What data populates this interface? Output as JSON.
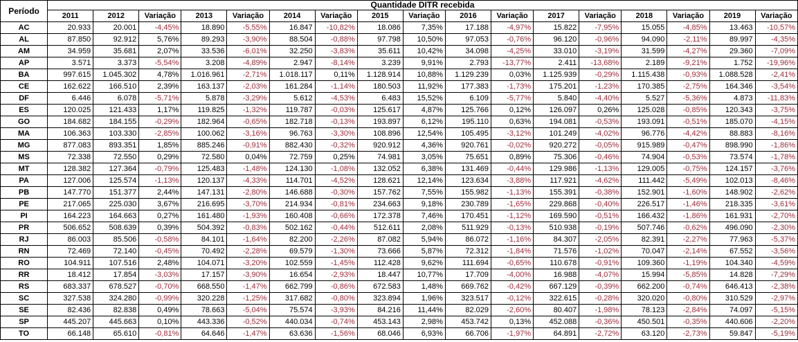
{
  "colors": {
    "negative_text": "#9c2b38",
    "positive_text": "#000000",
    "border": "#000000",
    "background": "#ffffff"
  },
  "chart_data": {
    "type": "table",
    "title": "Quantidade DITR recebida",
    "row_header": "Período",
    "columns": [
      "2011",
      "2012",
      "Variação",
      "2013",
      "Variação",
      "2014",
      "Variação",
      "2015",
      "Variação",
      "2016",
      "Variação",
      "2017",
      "Variação",
      "2018",
      "Variação",
      "2019",
      "Variação"
    ],
    "rows": [
      {
        "state": "AC",
        "cells": [
          "20.933",
          "20.001",
          "-4,45%",
          "18.890",
          "-5,55%",
          "16.847",
          "-10,82%",
          "18.086",
          "7,35%",
          "17.188",
          "-4,97%",
          "15.822",
          "-7,95%",
          "15.055",
          "-4,85%",
          "13.463",
          "-10,57%"
        ]
      },
      {
        "state": "AL",
        "cells": [
          "87.850",
          "92.912",
          "5,76%",
          "89.293",
          "-3,90%",
          "88.504",
          "-0,88%",
          "97.798",
          "10,50%",
          "97.053",
          "-0,76%",
          "96.120",
          "-0,96%",
          "94.090",
          "-2,11%",
          "89.997",
          "-4,35%"
        ]
      },
      {
        "state": "AM",
        "cells": [
          "34.959",
          "35.681",
          "2,07%",
          "33.536",
          "-6,01%",
          "32.250",
          "-3,83%",
          "35.611",
          "10,42%",
          "34.098",
          "-4,25%",
          "33.010",
          "-3,19%",
          "31.599",
          "-4,27%",
          "29.360",
          "-7,09%"
        ]
      },
      {
        "state": "AP",
        "cells": [
          "3.571",
          "3.373",
          "-5,54%",
          "3.208",
          "-4,89%",
          "2.947",
          "-8,14%",
          "3.239",
          "9,91%",
          "2.793",
          "-13,77%",
          "2.411",
          "-13,68%",
          "2.189",
          "-9,21%",
          "1.752",
          "-19,96%"
        ]
      },
      {
        "state": "BA",
        "cells": [
          "997.615",
          "1.045.302",
          "4,78%",
          "1.016.961",
          "-2,71%",
          "1.018.117",
          "0,11%",
          "1.128.914",
          "10,88%",
          "1.129.239",
          "0,03%",
          "1.125.939",
          "-0,29%",
          "1.115.438",
          "-0,93%",
          "1.088.528",
          "-2,41%"
        ]
      },
      {
        "state": "CE",
        "cells": [
          "162.622",
          "166.510",
          "2,39%",
          "163.137",
          "-2,03%",
          "161.284",
          "-1,14%",
          "180.503",
          "11,92%",
          "177.383",
          "-1,73%",
          "175.201",
          "-1,23%",
          "170.385",
          "-2,75%",
          "164.346",
          "-3,54%"
        ]
      },
      {
        "state": "DF",
        "cells": [
          "6.446",
          "6.078",
          "-5,71%",
          "5.878",
          "-3,29%",
          "5.612",
          "-4,53%",
          "6.483",
          "15,52%",
          "6.109",
          "-5,77%",
          "5.840",
          "-4,40%",
          "5.527",
          "-5,36%",
          "4.873",
          "-11,83%"
        ]
      },
      {
        "state": "ES",
        "cells": [
          "120.025",
          "121.433",
          "1,17%",
          "119.825",
          "-1,32%",
          "119.787",
          "-0,03%",
          "125.617",
          "4,87%",
          "125.766",
          "0,12%",
          "126.097",
          "0,26%",
          "125.028",
          "-0,85%",
          "120.343",
          "-3,75%"
        ]
      },
      {
        "state": "GO",
        "cells": [
          "184.682",
          "184.155",
          "-0,29%",
          "182.964",
          "-0,65%",
          "182.718",
          "-0,13%",
          "193.897",
          "6,12%",
          "195.110",
          "0,63%",
          "194.081",
          "-0,53%",
          "193.091",
          "-0,51%",
          "185.070",
          "-4,15%"
        ]
      },
      {
        "state": "MA",
        "cells": [
          "106.363",
          "103.330",
          "-2,85%",
          "100.062",
          "-3,16%",
          "96.763",
          "-3,30%",
          "108.896",
          "12,54%",
          "105.495",
          "-3,12%",
          "101.249",
          "-4,02%",
          "96.776",
          "-4,42%",
          "88.883",
          "-8,16%"
        ]
      },
      {
        "state": "MG",
        "cells": [
          "877.083",
          "893.351",
          "1,85%",
          "885.246",
          "-0,91%",
          "882.430",
          "-0,32%",
          "920.912",
          "4,36%",
          "920.761",
          "-0,02%",
          "920.272",
          "-0,05%",
          "915.989",
          "-0,47%",
          "898.990",
          "-1,86%"
        ]
      },
      {
        "state": "MS",
        "cells": [
          "72.338",
          "72.550",
          "0,29%",
          "72.580",
          "0,04%",
          "72.759",
          "0,25%",
          "74.981",
          "3,05%",
          "75.651",
          "0,89%",
          "75.306",
          "-0,46%",
          "74.904",
          "-0,53%",
          "73.574",
          "-1,78%"
        ]
      },
      {
        "state": "MT",
        "cells": [
          "128.382",
          "127.364",
          "-0,79%",
          "125.483",
          "-1,48%",
          "124.130",
          "-1,08%",
          "132.052",
          "6,38%",
          "131.469",
          "-0,44%",
          "129.986",
          "-1,13%",
          "129.005",
          "-0,75%",
          "124.157",
          "-3,76%"
        ]
      },
      {
        "state": "PA",
        "cells": [
          "127.006",
          "125.574",
          "-1,13%",
          "120.137",
          "-4,33%",
          "114.701",
          "-4,52%",
          "128.621",
          "12,14%",
          "123.634",
          "-3,88%",
          "117.921",
          "-4,62%",
          "111.442",
          "-5,49%",
          "102.013",
          "-8,46%"
        ]
      },
      {
        "state": "PB",
        "cells": [
          "147.770",
          "151.377",
          "2,44%",
          "147.131",
          "-2,80%",
          "146.688",
          "-0,30%",
          "157.762",
          "7,55%",
          "155.982",
          "-1,13%",
          "155.391",
          "-0,38%",
          "152.901",
          "-1,60%",
          "148.902",
          "-2,62%"
        ]
      },
      {
        "state": "PE",
        "cells": [
          "217.065",
          "225.030",
          "3,67%",
          "216.695",
          "-3,70%",
          "214.934",
          "-0,81%",
          "234.663",
          "9,18%",
          "230.789",
          "-1,65%",
          "229.868",
          "-0,40%",
          "226.517",
          "-1,46%",
          "218.335",
          "-3,61%"
        ]
      },
      {
        "state": "PI",
        "cells": [
          "164.223",
          "164.663",
          "0,27%",
          "161.480",
          "-1,93%",
          "160.408",
          "-0,66%",
          "172.378",
          "7,46%",
          "170.451",
          "-1,12%",
          "169.590",
          "-0,51%",
          "166.432",
          "-1,86%",
          "161.931",
          "-2,70%"
        ]
      },
      {
        "state": "PR",
        "cells": [
          "506.652",
          "508.639",
          "0,39%",
          "504.392",
          "-0,83%",
          "502.162",
          "-0,44%",
          "512.611",
          "2,08%",
          "511.929",
          "-0,13%",
          "510.938",
          "-0,19%",
          "507.746",
          "-0,62%",
          "496.090",
          "-2,30%"
        ]
      },
      {
        "state": "RJ",
        "cells": [
          "86.003",
          "85.506",
          "-0,58%",
          "84.101",
          "-1,64%",
          "82.200",
          "-2,26%",
          "87.082",
          "5,94%",
          "86.072",
          "-1,16%",
          "84.307",
          "-2,05%",
          "82.391",
          "-2,27%",
          "77.963",
          "-5,37%"
        ]
      },
      {
        "state": "RN",
        "cells": [
          "72.469",
          "72.140",
          "-0,45%",
          "70.492",
          "-2,28%",
          "69.579",
          "-1,30%",
          "73.666",
          "5,87%",
          "72.312",
          "-1,84%",
          "71.576",
          "-1,02%",
          "70.047",
          "-2,14%",
          "67.552",
          "-3,56%"
        ]
      },
      {
        "state": "RO",
        "cells": [
          "104.911",
          "107.516",
          "2,48%",
          "104.071",
          "-3,20%",
          "102.559",
          "-1,45%",
          "112.428",
          "9,62%",
          "111.694",
          "-0,65%",
          "110.678",
          "-0,91%",
          "109.360",
          "-1,19%",
          "104.340",
          "-4,59%"
        ]
      },
      {
        "state": "RR",
        "cells": [
          "18.412",
          "17.854",
          "-3,03%",
          "17.157",
          "-3,90%",
          "16.654",
          "-2,93%",
          "18.447",
          "10,77%",
          "17.709",
          "-4,00%",
          "16.988",
          "-4,07%",
          "15.994",
          "-5,85%",
          "14.828",
          "-7,29%"
        ]
      },
      {
        "state": "RS",
        "cells": [
          "683.337",
          "678.527",
          "-0,70%",
          "668.550",
          "-1,47%",
          "662.799",
          "-0,86%",
          "672.583",
          "1,48%",
          "669.762",
          "-0,42%",
          "667.129",
          "-0,39%",
          "662.200",
          "-0,74%",
          "646.413",
          "-2,38%"
        ]
      },
      {
        "state": "SC",
        "cells": [
          "327.538",
          "324.280",
          "-0,99%",
          "320.228",
          "-1,25%",
          "317.682",
          "-0,80%",
          "323.894",
          "1,96%",
          "323.517",
          "-0,12%",
          "322.615",
          "-0,28%",
          "320.020",
          "-0,80%",
          "310.529",
          "-2,97%"
        ]
      },
      {
        "state": "SE",
        "cells": [
          "82.436",
          "82.838",
          "0,49%",
          "78.663",
          "-5,04%",
          "75.574",
          "-3,93%",
          "84.216",
          "11,44%",
          "82.029",
          "-2,60%",
          "80.407",
          "-1,98%",
          "78.123",
          "-2,84%",
          "74.097",
          "-5,15%"
        ]
      },
      {
        "state": "SP",
        "cells": [
          "445.207",
          "445.663",
          "0,10%",
          "443.336",
          "-0,52%",
          "440.034",
          "-0,74%",
          "453.143",
          "2,98%",
          "453.742",
          "0,13%",
          "452.088",
          "-0,36%",
          "450.501",
          "-0,35%",
          "440.606",
          "-2,20%"
        ]
      },
      {
        "state": "TO",
        "cells": [
          "66.148",
          "65.610",
          "-0,81%",
          "64.646",
          "-1,47%",
          "63.636",
          "-1,56%",
          "68.046",
          "6,93%",
          "66.706",
          "-1,97%",
          "64.891",
          "-2,72%",
          "63.120",
          "-2,73%",
          "59.847",
          "-5,19%"
        ]
      }
    ]
  }
}
